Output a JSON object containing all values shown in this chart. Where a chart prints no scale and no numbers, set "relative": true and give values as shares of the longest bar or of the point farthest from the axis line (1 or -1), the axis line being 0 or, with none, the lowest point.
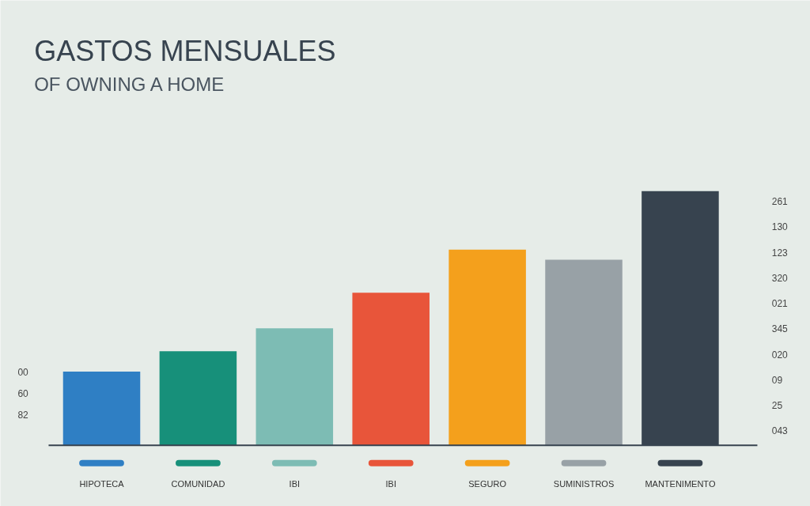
{
  "chart_data": {
    "type": "bar",
    "title": "GASTOS MENSUALES",
    "subtitle": "OF OWNING A HOME",
    "categories": [
      "HIPOTECA",
      "COMUNIDAD",
      "IBI",
      "IBI",
      "SEGURO",
      "SUMINISTROS",
      "MANTENIMENTO"
    ],
    "values": [
      0.29,
      0.37,
      0.46,
      0.6,
      0.77,
      0.73,
      1
    ],
    "colors": [
      "#2f7fc4",
      "#17907a",
      "#7dbcb4",
      "#e8553a",
      "#f4a01c",
      "#98a1a6",
      "#37434f"
    ],
    "relative": true,
    "grid": false,
    "annotations": [
      "00",
      "60",
      "82",
      "261",
      "130",
      "123",
      "320",
      "021",
      "345",
      "020",
      "09",
      "25",
      "043"
    ]
  }
}
